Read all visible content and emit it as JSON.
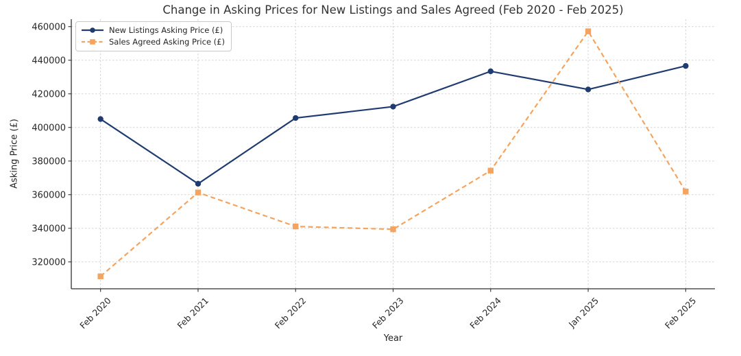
{
  "chart_data": {
    "type": "line",
    "title": "Change in Asking Prices for New Listings and Sales Agreed (Feb 2020 - Feb 2025)",
    "xlabel": "Year",
    "ylabel": "Asking Price (£)",
    "categories": [
      "Feb 2020",
      "Feb 2021",
      "Feb 2022",
      "Feb 2023",
      "Feb 2024",
      "Jan 2025",
      "Feb 2025"
    ],
    "series": [
      {
        "name": "New Listings Asking Price (£)",
        "color": "#1f3b70",
        "line_style": "solid",
        "marker": "circle",
        "values": [
          405000,
          366500,
          405600,
          412400,
          433400,
          422600,
          436600
        ]
      },
      {
        "name": "Sales Agreed Asking Price (£)",
        "color": "#f4a45f",
        "line_style": "dashed",
        "marker": "square",
        "values": [
          311400,
          361300,
          341100,
          339400,
          374300,
          457200,
          361900
        ]
      }
    ],
    "yticks": [
      320000,
      340000,
      360000,
      380000,
      400000,
      420000,
      440000,
      460000
    ],
    "ylim": [
      304000,
      464400
    ],
    "xlim": [
      -0.3,
      6.3
    ],
    "grid": true,
    "grid_style": "dashed",
    "legend_position": "upper left"
  }
}
